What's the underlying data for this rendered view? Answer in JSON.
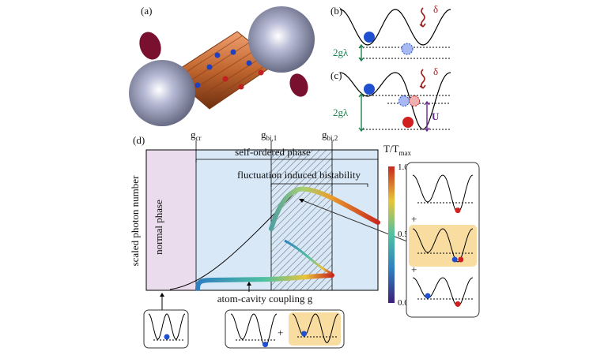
{
  "labels": {
    "a": "(a)",
    "b": "(b)",
    "c": "(c)",
    "d": "(d)"
  },
  "panel_b": {
    "delta": "δ",
    "gap": "2gλ"
  },
  "panel_c": {
    "delta": "δ",
    "gap": "2gλ",
    "interaction": "U"
  },
  "panel_d": {
    "markers": [
      {
        "base": "g",
        "sub": "cr"
      },
      {
        "base": "g",
        "sub": "bi,1"
      },
      {
        "base": "g",
        "sub": "bi,2"
      }
    ],
    "phases": {
      "self_ordered": "self-ordered phase",
      "bistability": "fluctuation induced bistability",
      "normal": "normal phase"
    },
    "y_label": "scaled photon number",
    "x_label": "atom-cavity coupling g",
    "colorbar": {
      "title": {
        "base": "T/T",
        "sub": "max"
      },
      "ticks": [
        "1.0",
        "0.5",
        "0.0"
      ]
    },
    "plus_signs": [
      "+",
      "+",
      "+"
    ]
  }
}
